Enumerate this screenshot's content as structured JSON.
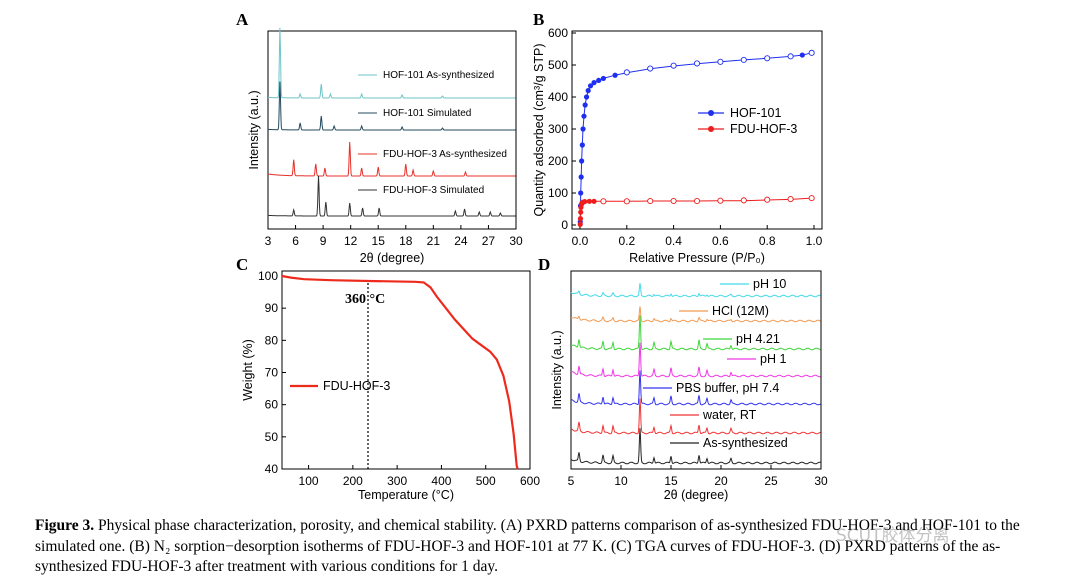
{
  "panels": {
    "A": {
      "letter": "A",
      "xlabel": "2θ (degree)",
      "ylabel": "Intensity (a.u.)"
    },
    "B": {
      "letter": "B",
      "xlabel": "Relative Pressure (P/P₀)",
      "ylabel": "Quantity adsorbed (cm³/g STP)"
    },
    "C": {
      "letter": "C",
      "xlabel": "Temperature (°C)",
      "ylabel": "Weight (%)",
      "annotation": "360 °C"
    },
    "D": {
      "letter": "D",
      "xlabel": "2θ (degree)",
      "ylabel": "Intensity (a.u.)"
    }
  },
  "colors": {
    "hof101_as": "#6fc5c9",
    "hof101_sim": "#24495e",
    "fdu_as": "#e8302a",
    "fdu_sim": "#333333",
    "iso_hof": "#1f2ff0",
    "iso_fdu": "#ee1c1c",
    "tga": "#ee2a1c",
    "pH10": "#45d9e8",
    "hcl": "#f29a52",
    "ph421": "#3fd53a",
    "ph1": "#f037e6",
    "pbs": "#3333f0",
    "water": "#f03333",
    "as": "#222222"
  },
  "chart_data": [
    {
      "panel": "A",
      "type": "line",
      "xlim": [
        3,
        30
      ],
      "xticks": [
        3,
        6,
        9,
        12,
        15,
        18,
        21,
        24,
        27,
        30
      ],
      "series": [
        {
          "name": "HOF-101 As-synthesized",
          "peaks": [
            [
              4.3,
              70
            ],
            [
              6.5,
              4
            ],
            [
              8.8,
              14
            ],
            [
              9.8,
              4
            ],
            [
              13.2,
              4
            ],
            [
              17.6,
              3
            ],
            [
              22,
              2
            ]
          ]
        },
        {
          "name": "HOF-101 Simulated",
          "peaks": [
            [
              4.3,
              48
            ],
            [
              6.5,
              7
            ],
            [
              8.8,
              14
            ],
            [
              10.2,
              4
            ],
            [
              13.2,
              4
            ],
            [
              17.6,
              3
            ],
            [
              22,
              2
            ]
          ]
        },
        {
          "name": "FDU-HOF-3 As-synthesized",
          "peaks": [
            [
              5.8,
              16
            ],
            [
              8.2,
              12
            ],
            [
              9.2,
              8
            ],
            [
              11.9,
              34
            ],
            [
              13.2,
              8
            ],
            [
              15.0,
              9
            ],
            [
              18.0,
              12
            ],
            [
              18.8,
              6
            ],
            [
              21.0,
              5
            ],
            [
              24.5,
              4
            ]
          ]
        },
        {
          "name": "FDU-HOF-3 Simulated",
          "peaks": [
            [
              5.8,
              6
            ],
            [
              8.5,
              40
            ],
            [
              9.3,
              14
            ],
            [
              11.9,
              13
            ],
            [
              13.3,
              8
            ],
            [
              15.1,
              8
            ],
            [
              23.4,
              5
            ],
            [
              24.4,
              7
            ],
            [
              26.0,
              4
            ],
            [
              27.2,
              4
            ],
            [
              28.3,
              3
            ]
          ]
        }
      ]
    },
    {
      "panel": "B",
      "type": "scatter",
      "xlim": [
        0,
        1.0
      ],
      "ylim": [
        0,
        600
      ],
      "xticks": [
        0.0,
        0.2,
        0.4,
        0.6,
        0.8,
        1.0
      ],
      "yticks": [
        0,
        100,
        200,
        300,
        400,
        500,
        600
      ],
      "series": [
        {
          "name": "HOF-101",
          "adsorption": [
            [
              0.001,
              10
            ],
            [
              0.002,
              60
            ],
            [
              0.003,
              100
            ],
            [
              0.005,
              150
            ],
            [
              0.007,
              200
            ],
            [
              0.01,
              250
            ],
            [
              0.013,
              300
            ],
            [
              0.017,
              340
            ],
            [
              0.022,
              375
            ],
            [
              0.028,
              400
            ],
            [
              0.035,
              420
            ],
            [
              0.045,
              435
            ],
            [
              0.06,
              445
            ],
            [
              0.08,
              452
            ],
            [
              0.1,
              458
            ],
            [
              0.15,
              468
            ],
            [
              0.2,
              476
            ],
            [
              0.3,
              488
            ],
            [
              0.4,
              497
            ],
            [
              0.5,
              504
            ],
            [
              0.6,
              510
            ],
            [
              0.7,
              516
            ],
            [
              0.8,
              521
            ],
            [
              0.9,
              527
            ],
            [
              0.95,
              531
            ],
            [
              0.99,
              538
            ]
          ],
          "desorption": [
            [
              0.99,
              538
            ],
            [
              0.9,
              527
            ],
            [
              0.8,
              521
            ],
            [
              0.7,
              516
            ],
            [
              0.6,
              510
            ],
            [
              0.5,
              505
            ],
            [
              0.4,
              498
            ],
            [
              0.3,
              489
            ],
            [
              0.2,
              477
            ]
          ]
        },
        {
          "name": "FDU-HOF-3",
          "adsorption": [
            [
              0.001,
              2
            ],
            [
              0.002,
              20
            ],
            [
              0.003,
              40
            ],
            [
              0.004,
              55
            ],
            [
              0.006,
              64
            ],
            [
              0.008,
              68
            ],
            [
              0.012,
              71
            ],
            [
              0.02,
              73
            ],
            [
              0.04,
              74
            ],
            [
              0.06,
              74
            ],
            [
              0.1,
              74
            ],
            [
              0.2,
              74
            ],
            [
              0.3,
              75
            ],
            [
              0.4,
              75
            ],
            [
              0.5,
              75
            ],
            [
              0.6,
              76
            ],
            [
              0.7,
              76
            ],
            [
              0.8,
              78
            ],
            [
              0.9,
              80
            ],
            [
              0.99,
              84
            ]
          ],
          "desorption": [
            [
              0.99,
              84
            ],
            [
              0.9,
              81
            ],
            [
              0.8,
              79
            ],
            [
              0.7,
              77
            ],
            [
              0.6,
              76
            ],
            [
              0.5,
              75
            ],
            [
              0.4,
              75
            ],
            [
              0.3,
              75
            ],
            [
              0.2,
              74
            ],
            [
              0.1,
              74
            ]
          ]
        }
      ]
    },
    {
      "panel": "C",
      "type": "line",
      "xlim": [
        40,
        600
      ],
      "ylim": [
        40,
        100
      ],
      "xticks": [
        100,
        200,
        300,
        400,
        500,
        600
      ],
      "yticks": [
        40,
        50,
        60,
        70,
        80,
        90,
        100
      ],
      "series": [
        {
          "name": "FDU-HOF-3",
          "points": [
            [
              40,
              100
            ],
            [
              60,
              99.5
            ],
            [
              90,
              99.0
            ],
            [
              150,
              98.7
            ],
            [
              250,
              98.4
            ],
            [
              340,
              98.2
            ],
            [
              360,
              98.0
            ],
            [
              375,
              96.5
            ],
            [
              390,
              93.5
            ],
            [
              410,
              90.0
            ],
            [
              430,
              86.5
            ],
            [
              450,
              83.5
            ],
            [
              470,
              80.5
            ],
            [
              490,
              78.5
            ],
            [
              510,
              76.5
            ],
            [
              525,
              74.0
            ],
            [
              540,
              69.0
            ],
            [
              553,
              61.0
            ],
            [
              563,
              51.0
            ],
            [
              570,
              41.0
            ],
            [
              572,
              40.0
            ]
          ]
        }
      ]
    },
    {
      "panel": "D",
      "type": "line",
      "xlim": [
        5,
        30
      ],
      "xticks": [
        5,
        10,
        15,
        20,
        25,
        30
      ],
      "peaks": [
        [
          5.8,
          0.25
        ],
        [
          8.2,
          0.22
        ],
        [
          9.2,
          0.2
        ],
        [
          11.9,
          1.0
        ],
        [
          13.3,
          0.18
        ],
        [
          15.0,
          0.22
        ],
        [
          17.8,
          0.25
        ],
        [
          18.6,
          0.15
        ],
        [
          21.0,
          0.12
        ]
      ],
      "series": [
        {
          "name": "pH 10"
        },
        {
          "name": "HCl (12M)"
        },
        {
          "name": "pH 4.21"
        },
        {
          "name": "pH 1"
        },
        {
          "name": "PBS buffer, pH 7.4"
        },
        {
          "name": "water, RT"
        },
        {
          "name": "As-synthesized"
        }
      ]
    }
  ],
  "caption": {
    "label": "Figure 3.",
    "text": " Physical phase characterization, porosity, and chemical stability. (A) PXRD patterns comparison of as-synthesized FDU-HOF-3 and HOF-101 to the simulated one. (B) N₂ sorption−desorption isotherms of FDU-HOF-3 and HOF-101 at 77 K. (C) TGA curves of FDU-HOF-3. (D) PXRD patterns of the as-synthesized FDU-HOF-3 after treatment with various conditions for 1 day."
  },
  "watermark": "SCUT胶体分离"
}
